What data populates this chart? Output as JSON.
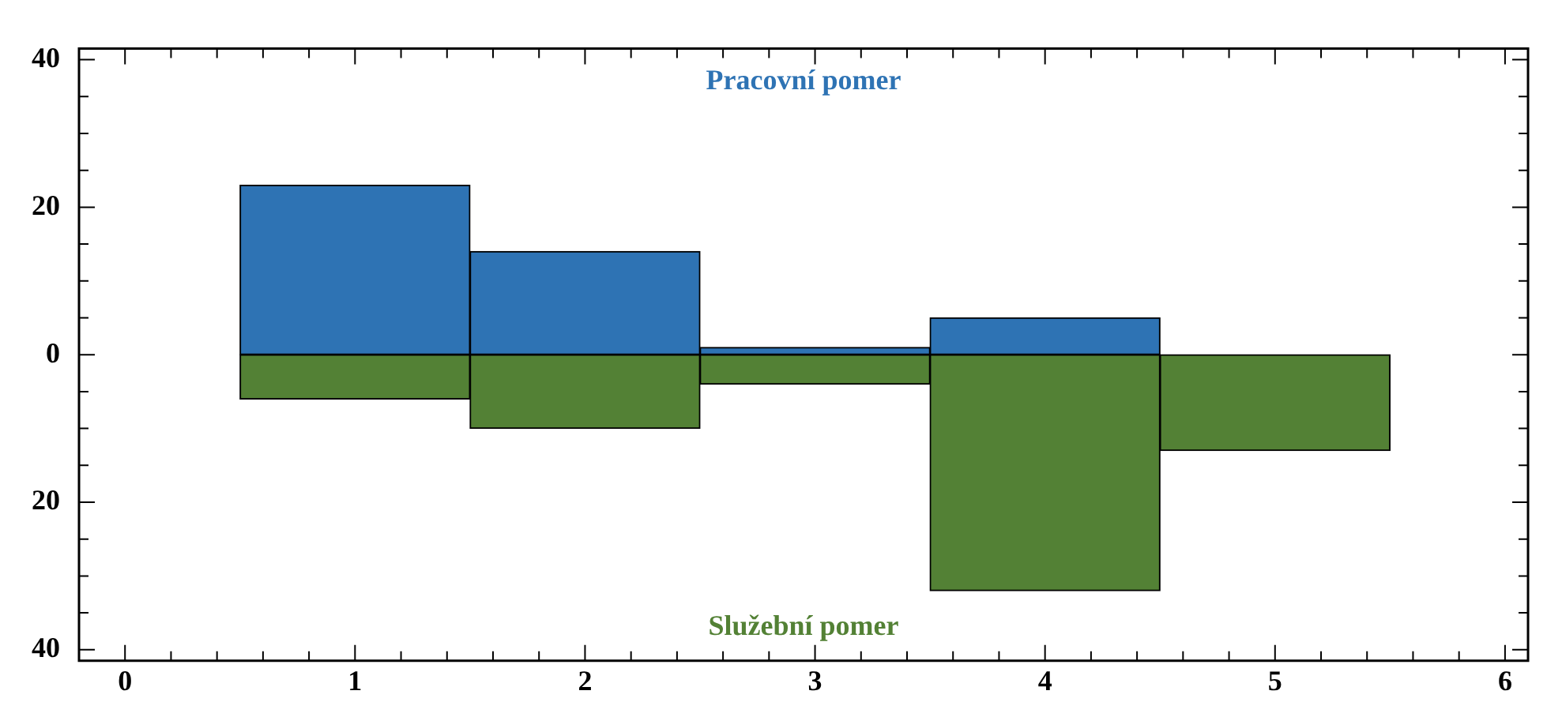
{
  "chart_data": {
    "type": "bar",
    "stacked": true,
    "x": [
      1,
      2,
      3,
      4,
      5
    ],
    "series": [
      {
        "name": "Pracovní pomer",
        "color": "#2e73b4",
        "values": [
          23,
          14,
          1,
          5,
          0
        ]
      },
      {
        "name": "Služební pomer",
        "color": "#538135",
        "values": [
          -6,
          -10,
          -4,
          -32,
          -13
        ]
      }
    ],
    "xlim": [
      -0.2,
      6.1
    ],
    "xticks": [
      0,
      {
        "value": 0.2,
        "label": null
      },
      {
        "value": 0.4,
        "label": null
      },
      {
        "value": 0.6,
        "label": null
      },
      {
        "value": 0.8,
        "label": null
      },
      1,
      {
        "value": 1.2,
        "label": null
      },
      {
        "value": 1.4,
        "label": null
      },
      {
        "value": 1.6,
        "label": null
      },
      {
        "value": 1.8,
        "label": null
      },
      2,
      {
        "value": 2.2,
        "label": null
      },
      {
        "value": 2.4,
        "label": null
      },
      {
        "value": 2.6,
        "label": null
      },
      {
        "value": 2.8,
        "label": null
      },
      3,
      {
        "value": 3.2,
        "label": null
      },
      {
        "value": 3.4,
        "label": null
      },
      {
        "value": 3.6,
        "label": null
      },
      {
        "value": 3.8,
        "label": null
      },
      4,
      {
        "value": 4.2,
        "label": null
      },
      {
        "value": 4.4,
        "label": null
      },
      {
        "value": 4.6,
        "label": null
      },
      {
        "value": 4.8,
        "label": null
      },
      5,
      {
        "value": 5.2,
        "label": null
      },
      {
        "value": 5.4,
        "label": null
      },
      {
        "value": 5.6,
        "label": null
      },
      {
        "value": 5.8,
        "label": null
      },
      6
    ],
    "ylim": [
      -41.5,
      41.5
    ],
    "yticks": [
      {
        "value": -40,
        "label": "40"
      },
      {
        "value": -35,
        "label": null
      },
      {
        "value": -30,
        "label": null
      },
      {
        "value": -25,
        "label": null
      },
      {
        "value": -20,
        "label": "20"
      },
      {
        "value": -15,
        "label": null
      },
      {
        "value": -10,
        "label": null
      },
      {
        "value": -5,
        "label": null
      },
      0,
      {
        "value": 5,
        "label": null
      },
      {
        "value": 10,
        "label": null
      },
      {
        "value": 15,
        "label": null
      },
      20,
      {
        "value": 25,
        "label": null
      },
      {
        "value": 30,
        "label": null
      },
      {
        "value": 35,
        "label": null
      },
      40
    ],
    "grid": false,
    "legend": false
  }
}
